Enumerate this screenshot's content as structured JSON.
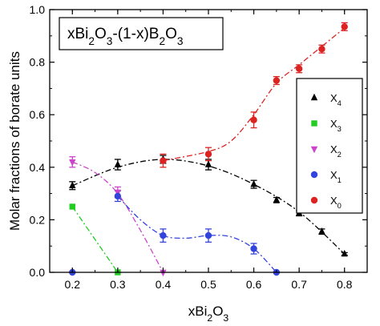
{
  "chart_data": {
    "type": "line",
    "title_parts": [
      {
        "t": "xBi",
        "s": "n"
      },
      {
        "t": "2",
        "s": "sub"
      },
      {
        "t": "O",
        "s": "n"
      },
      {
        "t": "3",
        "s": "sub"
      },
      {
        "t": "-(1-x)B",
        "s": "n"
      },
      {
        "t": "2",
        "s": "sub"
      },
      {
        "t": "O",
        "s": "n"
      },
      {
        "t": "3",
        "s": "sub"
      }
    ],
    "xlabel_parts": [
      {
        "t": "xBi",
        "s": "n"
      },
      {
        "t": "2",
        "s": "sub"
      },
      {
        "t": "O",
        "s": "n"
      },
      {
        "t": "3",
        "s": "sub"
      }
    ],
    "ylabel": "Molar fractions of borate units",
    "xlim": [
      0.15,
      0.85
    ],
    "ylim": [
      0.0,
      1.0
    ],
    "xticks": [
      "0.2",
      "0.3",
      "0.4",
      "0.5",
      "0.6",
      "0.7",
      "0.8"
    ],
    "yticks": [
      "0.0",
      "0.2",
      "0.4",
      "0.6",
      "0.8",
      "1.0"
    ],
    "legend_position": "right",
    "series": [
      {
        "key": "x4",
        "label": "X",
        "sub": "4",
        "color": "#000000",
        "marker": "triangle-up",
        "points": [
          {
            "x": 0.2,
            "y": 0.33,
            "err": 0.015
          },
          {
            "x": 0.3,
            "y": 0.41,
            "err": 0.02
          },
          {
            "x": 0.4,
            "y": 0.43,
            "err": 0.015
          },
          {
            "x": 0.5,
            "y": 0.41,
            "err": 0.02
          },
          {
            "x": 0.6,
            "y": 0.335,
            "err": 0.015
          },
          {
            "x": 0.65,
            "y": 0.275,
            "err": 0.01
          },
          {
            "x": 0.7,
            "y": 0.225,
            "err": 0.01
          },
          {
            "x": 0.75,
            "y": 0.155,
            "err": 0.01
          },
          {
            "x": 0.8,
            "y": 0.07,
            "err": 0.005
          }
        ],
        "curve": [
          [
            0.2,
            0.33
          ],
          [
            0.3,
            0.4
          ],
          [
            0.4,
            0.43
          ],
          [
            0.5,
            0.405
          ],
          [
            0.6,
            0.335
          ],
          [
            0.7,
            0.23
          ],
          [
            0.8,
            0.07
          ]
        ]
      },
      {
        "key": "x3",
        "label": "X",
        "sub": "3",
        "color": "#22cc22",
        "marker": "square",
        "points": [
          {
            "x": 0.2,
            "y": 0.25,
            "err": 0.0
          },
          {
            "x": 0.3,
            "y": 0.0,
            "err": 0.0
          }
        ],
        "curve": [
          [
            0.2,
            0.25
          ],
          [
            0.25,
            0.125
          ],
          [
            0.3,
            0.0
          ]
        ]
      },
      {
        "key": "x2",
        "label": "X",
        "sub": "2",
        "color": "#cc44cc",
        "marker": "triangle-down",
        "points": [
          {
            "x": 0.2,
            "y": 0.42,
            "err": 0.02
          },
          {
            "x": 0.3,
            "y": 0.305,
            "err": 0.02
          },
          {
            "x": 0.4,
            "y": 0.0,
            "err": 0.0
          }
        ],
        "curve": [
          [
            0.2,
            0.42
          ],
          [
            0.25,
            0.38
          ],
          [
            0.3,
            0.3
          ],
          [
            0.35,
            0.16
          ],
          [
            0.4,
            0.0
          ]
        ]
      },
      {
        "key": "x1",
        "label": "X",
        "sub": "1",
        "color": "#3344dd",
        "marker": "circle",
        "points": [
          {
            "x": 0.2,
            "y": 0.0,
            "err": 0.0
          },
          {
            "x": 0.3,
            "y": 0.29,
            "err": 0.02
          },
          {
            "x": 0.4,
            "y": 0.14,
            "err": 0.025
          },
          {
            "x": 0.5,
            "y": 0.14,
            "err": 0.025
          },
          {
            "x": 0.6,
            "y": 0.09,
            "err": 0.02
          },
          {
            "x": 0.65,
            "y": 0.0,
            "err": 0.0
          }
        ],
        "curve": [
          [
            0.3,
            0.29
          ],
          [
            0.35,
            0.2
          ],
          [
            0.4,
            0.14
          ],
          [
            0.45,
            0.13
          ],
          [
            0.5,
            0.14
          ],
          [
            0.55,
            0.135
          ],
          [
            0.6,
            0.09
          ],
          [
            0.65,
            0.0
          ]
        ]
      },
      {
        "key": "x0",
        "label": "X",
        "sub": "0",
        "color": "#dd2222",
        "marker": "circle",
        "points": [
          {
            "x": 0.4,
            "y": 0.425,
            "err": 0.025
          },
          {
            "x": 0.5,
            "y": 0.45,
            "err": 0.025
          },
          {
            "x": 0.6,
            "y": 0.58,
            "err": 0.03
          },
          {
            "x": 0.65,
            "y": 0.73,
            "err": 0.015
          },
          {
            "x": 0.7,
            "y": 0.775,
            "err": 0.015
          },
          {
            "x": 0.75,
            "y": 0.85,
            "err": 0.015
          },
          {
            "x": 0.8,
            "y": 0.935,
            "err": 0.015
          }
        ],
        "curve": [
          [
            0.4,
            0.425
          ],
          [
            0.5,
            0.46
          ],
          [
            0.55,
            0.5
          ],
          [
            0.6,
            0.6
          ],
          [
            0.65,
            0.72
          ],
          [
            0.7,
            0.79
          ],
          [
            0.75,
            0.86
          ],
          [
            0.8,
            0.93
          ]
        ]
      }
    ]
  }
}
